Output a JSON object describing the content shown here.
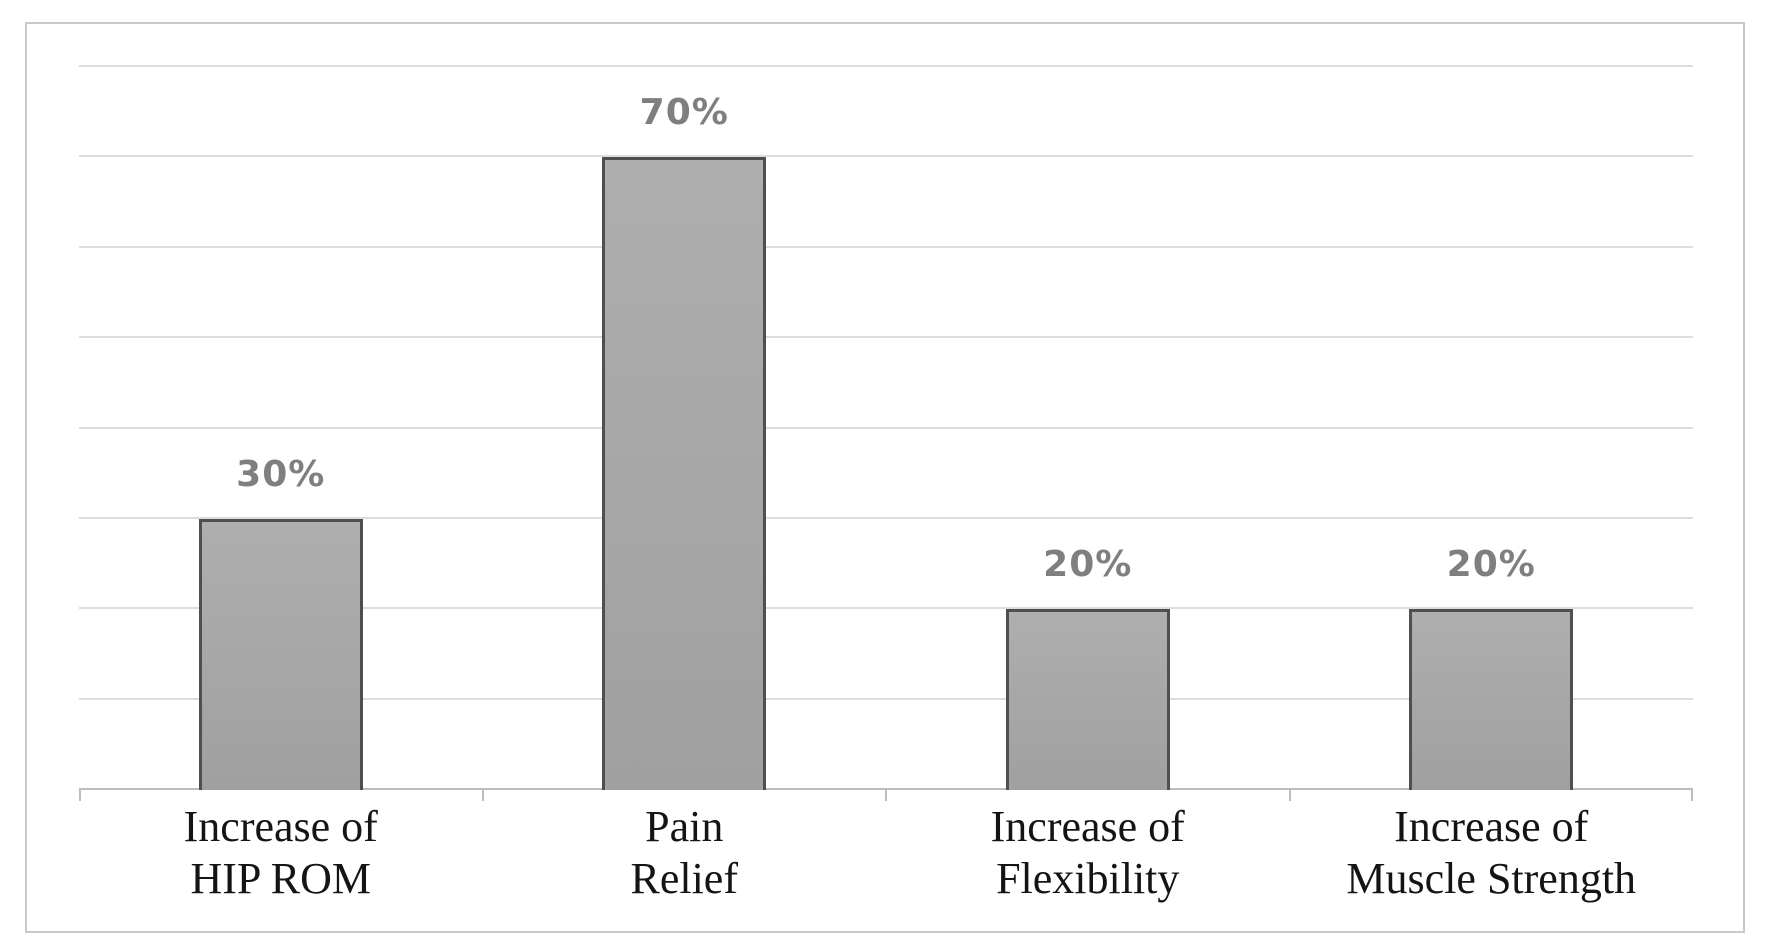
{
  "figure": {
    "background": "#ffffff",
    "border_color": "#c9c9c9"
  },
  "chart_data": {
    "type": "bar",
    "title": "",
    "xlabel": "",
    "ylabel": "",
    "categories": [
      "Increase of HIP ROM",
      "Pain Relief",
      "Increase of Flexibility",
      "Increase of Muscle Strength"
    ],
    "category_label_lines": [
      [
        "Increase of",
        "HIP ROM"
      ],
      [
        "Pain",
        "Relief"
      ],
      [
        "Increase of",
        "Flexibility"
      ],
      [
        "Increase of",
        "Muscle Strength"
      ]
    ],
    "values": [
      30,
      70,
      20,
      20
    ],
    "data_labels": [
      "30%",
      "70%",
      "20%",
      "20%"
    ],
    "ylim": [
      0,
      80
    ],
    "gridline_step": 10,
    "grid": true,
    "legend": "none",
    "y_tick_labels_visible": false,
    "colors": {
      "bar_fill_top": "#aeaeae",
      "bar_fill_bottom": "#a0a0a0",
      "bar_border": "#4f4f4f",
      "gridline": "#dcdcdc",
      "axis": "#bdbdbd",
      "data_label": "#7f7f7f",
      "category_label": "#141414"
    }
  }
}
